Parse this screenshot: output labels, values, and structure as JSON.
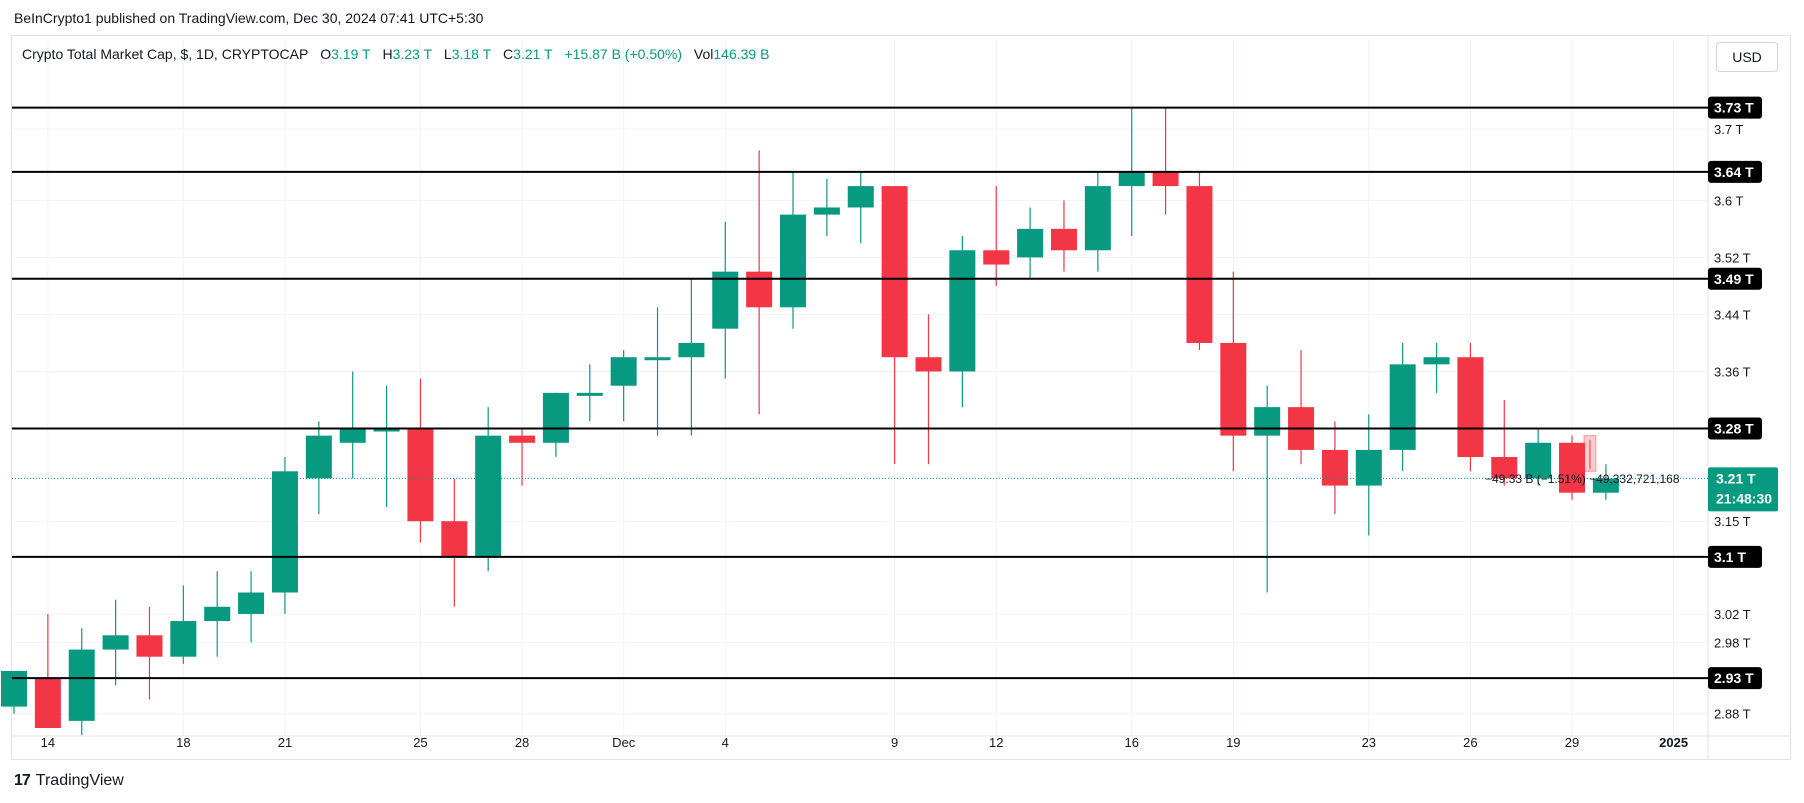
{
  "header": {
    "published": "BeInCrypto1 published on TradingView.com, Dec 30, 2024 07:41 UTC+5:30"
  },
  "legend": {
    "symbol": "Crypto Total Market Cap, $, 1D, CRYPTOCAP",
    "o_label": "O",
    "o_value": "3.19 T",
    "h_label": "H",
    "h_value": "3.23 T",
    "l_label": "L",
    "l_value": "3.18 T",
    "c_label": "C",
    "c_value": "3.21 T",
    "change": "+15.87 B (+0.50%)",
    "vol_label": "Vol",
    "vol_value": "146.39 B"
  },
  "currency_button": "USD",
  "brand": {
    "mark": "17",
    "name": "TradingView"
  },
  "colors": {
    "up": "#089981",
    "down": "#f23645",
    "level_line": "#000000",
    "grid": "#f0f3fa",
    "axis_text": "#131722",
    "price_badge": "#089981"
  },
  "chart_data": {
    "type": "candlestick",
    "title": "Crypto Total Market Cap, $, 1D, CRYPTOCAP",
    "ylim": [
      2.86,
      3.78
    ],
    "y_ticks": [
      {
        "value": 3.7,
        "label": "3.7 T"
      },
      {
        "value": 3.6,
        "label": "3.6 T"
      },
      {
        "value": 3.52,
        "label": "3.52 T"
      },
      {
        "value": 3.44,
        "label": "3.44 T"
      },
      {
        "value": 3.36,
        "label": "3.36 T"
      },
      {
        "value": 3.15,
        "label": "3.15 T"
      },
      {
        "value": 3.02,
        "label": "3.02 T"
      },
      {
        "value": 2.98,
        "label": "2.98 T"
      },
      {
        "value": 2.88,
        "label": "2.88 T"
      }
    ],
    "x_ticks": [
      {
        "date": "2024-11-14",
        "label": "14"
      },
      {
        "date": "2024-11-18",
        "label": "18"
      },
      {
        "date": "2024-11-21",
        "label": "21"
      },
      {
        "date": "2024-11-25",
        "label": "25"
      },
      {
        "date": "2024-11-28",
        "label": "28"
      },
      {
        "date": "2024-12-01",
        "label": "Dec"
      },
      {
        "date": "2024-12-04",
        "label": "4"
      },
      {
        "date": "2024-12-09",
        "label": "9"
      },
      {
        "date": "2024-12-12",
        "label": "12"
      },
      {
        "date": "2024-12-16",
        "label": "16"
      },
      {
        "date": "2024-12-19",
        "label": "19"
      },
      {
        "date": "2024-12-23",
        "label": "23"
      },
      {
        "date": "2024-12-26",
        "label": "26"
      },
      {
        "date": "2024-12-29",
        "label": "29"
      },
      {
        "date": "2025-01-01",
        "label": "2025"
      }
    ],
    "levels": [
      {
        "value": 3.73,
        "label": "3.73 T"
      },
      {
        "value": 3.64,
        "label": "3.64 T"
      },
      {
        "value": 3.49,
        "label": "3.49 T"
      },
      {
        "value": 3.28,
        "label": "3.28 T"
      },
      {
        "value": 3.1,
        "label": "3.1 T"
      },
      {
        "value": 2.93,
        "label": "2.93 T"
      }
    ],
    "current_price": {
      "value": 3.21,
      "label": "3.21 T",
      "countdown": "21:48:30"
    },
    "measure": {
      "date_from": "2024-12-29",
      "date_to": "2024-12-30",
      "from": 3.27,
      "to": 3.22,
      "label": "−49.33 B (−1.51%) −49,332,721,168"
    },
    "candles": [
      {
        "date": "2024-11-13",
        "o": 2.89,
        "h": 2.94,
        "l": 2.88,
        "c": 2.94
      },
      {
        "date": "2024-11-14",
        "o": 2.93,
        "h": 3.02,
        "l": 2.86,
        "c": 2.86
      },
      {
        "date": "2024-11-15",
        "o": 2.87,
        "h": 3.0,
        "l": 2.85,
        "c": 2.97
      },
      {
        "date": "2024-11-16",
        "o": 2.97,
        "h": 3.04,
        "l": 2.92,
        "c": 2.99
      },
      {
        "date": "2024-11-17",
        "o": 2.99,
        "h": 3.03,
        "l": 2.9,
        "c": 2.96
      },
      {
        "date": "2024-11-18",
        "o": 2.96,
        "h": 3.06,
        "l": 2.95,
        "c": 3.01
      },
      {
        "date": "2024-11-19",
        "o": 3.01,
        "h": 3.08,
        "l": 2.96,
        "c": 3.03
      },
      {
        "date": "2024-11-20",
        "o": 3.02,
        "h": 3.08,
        "l": 2.98,
        "c": 3.05
      },
      {
        "date": "2024-11-21",
        "o": 3.05,
        "h": 3.24,
        "l": 3.02,
        "c": 3.22
      },
      {
        "date": "2024-11-22",
        "o": 3.21,
        "h": 3.29,
        "l": 3.16,
        "c": 3.27
      },
      {
        "date": "2024-11-23",
        "o": 3.26,
        "h": 3.36,
        "l": 3.21,
        "c": 3.28
      },
      {
        "date": "2024-11-24",
        "o": 3.28,
        "h": 3.34,
        "l": 3.17,
        "c": 3.28
      },
      {
        "date": "2024-11-25",
        "o": 3.28,
        "h": 3.35,
        "l": 3.12,
        "c": 3.15
      },
      {
        "date": "2024-11-26",
        "o": 3.15,
        "h": 3.21,
        "l": 3.03,
        "c": 3.1
      },
      {
        "date": "2024-11-27",
        "o": 3.1,
        "h": 3.31,
        "l": 3.08,
        "c": 3.27
      },
      {
        "date": "2024-11-28",
        "o": 3.27,
        "h": 3.28,
        "l": 3.2,
        "c": 3.26
      },
      {
        "date": "2024-11-29",
        "o": 3.26,
        "h": 3.33,
        "l": 3.24,
        "c": 3.33
      },
      {
        "date": "2024-11-30",
        "o": 3.33,
        "h": 3.37,
        "l": 3.29,
        "c": 3.33
      },
      {
        "date": "2024-12-01",
        "o": 3.34,
        "h": 3.39,
        "l": 3.29,
        "c": 3.38
      },
      {
        "date": "2024-12-02",
        "o": 3.38,
        "h": 3.45,
        "l": 3.27,
        "c": 3.38
      },
      {
        "date": "2024-12-03",
        "o": 3.38,
        "h": 3.49,
        "l": 3.27,
        "c": 3.4
      },
      {
        "date": "2024-12-04",
        "o": 3.42,
        "h": 3.57,
        "l": 3.35,
        "c": 3.5
      },
      {
        "date": "2024-12-05",
        "o": 3.5,
        "h": 3.67,
        "l": 3.3,
        "c": 3.45
      },
      {
        "date": "2024-12-06",
        "o": 3.45,
        "h": 3.64,
        "l": 3.42,
        "c": 3.58
      },
      {
        "date": "2024-12-07",
        "o": 3.58,
        "h": 3.63,
        "l": 3.55,
        "c": 3.59
      },
      {
        "date": "2024-12-08",
        "o": 3.59,
        "h": 3.64,
        "l": 3.54,
        "c": 3.62
      },
      {
        "date": "2024-12-09",
        "o": 3.62,
        "h": 3.62,
        "l": 3.23,
        "c": 3.38
      },
      {
        "date": "2024-12-10",
        "o": 3.38,
        "h": 3.44,
        "l": 3.23,
        "c": 3.36
      },
      {
        "date": "2024-12-11",
        "o": 3.36,
        "h": 3.55,
        "l": 3.31,
        "c": 3.53
      },
      {
        "date": "2024-12-12",
        "o": 3.53,
        "h": 3.62,
        "l": 3.48,
        "c": 3.51
      },
      {
        "date": "2024-12-13",
        "o": 3.52,
        "h": 3.59,
        "l": 3.49,
        "c": 3.56
      },
      {
        "date": "2024-12-14",
        "o": 3.56,
        "h": 3.6,
        "l": 3.5,
        "c": 3.53
      },
      {
        "date": "2024-12-15",
        "o": 3.53,
        "h": 3.64,
        "l": 3.5,
        "c": 3.62
      },
      {
        "date": "2024-12-16",
        "o": 3.62,
        "h": 3.73,
        "l": 3.55,
        "c": 3.64
      },
      {
        "date": "2024-12-17",
        "o": 3.64,
        "h": 3.73,
        "l": 3.58,
        "c": 3.62
      },
      {
        "date": "2024-12-18",
        "o": 3.62,
        "h": 3.64,
        "l": 3.39,
        "c": 3.4
      },
      {
        "date": "2024-12-19",
        "o": 3.4,
        "h": 3.5,
        "l": 3.22,
        "c": 3.27
      },
      {
        "date": "2024-12-20",
        "o": 3.27,
        "h": 3.34,
        "l": 3.05,
        "c": 3.31
      },
      {
        "date": "2024-12-21",
        "o": 3.31,
        "h": 3.39,
        "l": 3.23,
        "c": 3.25
      },
      {
        "date": "2024-12-22",
        "o": 3.25,
        "h": 3.29,
        "l": 3.16,
        "c": 3.2
      },
      {
        "date": "2024-12-23",
        "o": 3.2,
        "h": 3.3,
        "l": 3.13,
        "c": 3.25
      },
      {
        "date": "2024-12-24",
        "o": 3.25,
        "h": 3.4,
        "l": 3.22,
        "c": 3.37
      },
      {
        "date": "2024-12-25",
        "o": 3.37,
        "h": 3.4,
        "l": 3.33,
        "c": 3.38
      },
      {
        "date": "2024-12-26",
        "o": 3.38,
        "h": 3.4,
        "l": 3.22,
        "c": 3.24
      },
      {
        "date": "2024-12-27",
        "o": 3.24,
        "h": 3.32,
        "l": 3.2,
        "c": 3.21
      },
      {
        "date": "2024-12-28",
        "o": 3.21,
        "h": 3.28,
        "l": 3.2,
        "c": 3.26
      },
      {
        "date": "2024-12-29",
        "o": 3.26,
        "h": 3.27,
        "l": 3.18,
        "c": 3.19
      },
      {
        "date": "2024-12-30",
        "o": 3.19,
        "h": 3.23,
        "l": 3.18,
        "c": 3.21
      }
    ]
  }
}
